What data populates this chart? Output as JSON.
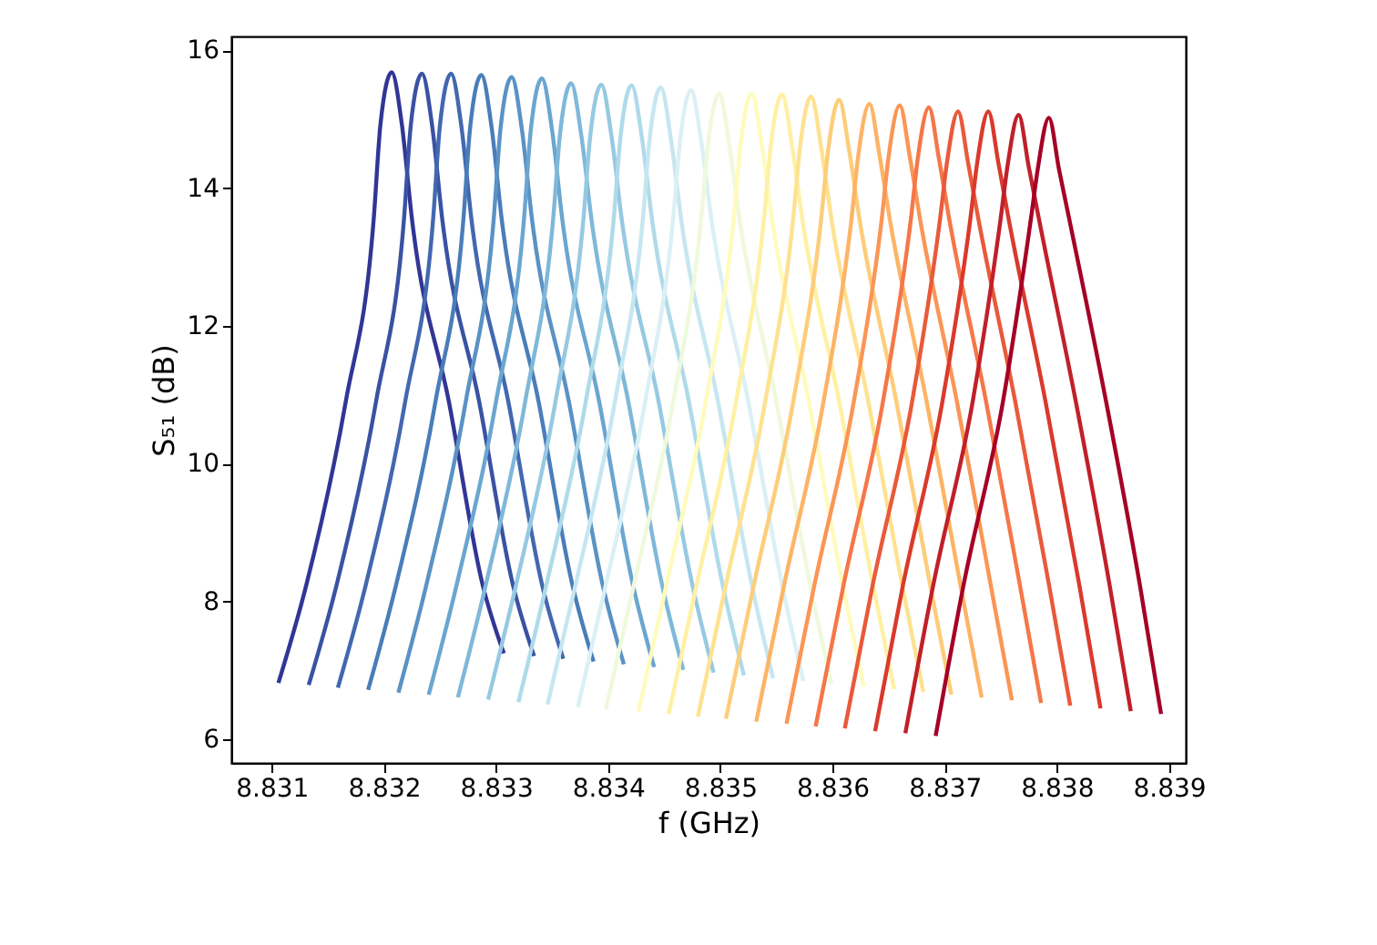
{
  "chart_data": {
    "type": "line",
    "xlabel": "f (GHz)",
    "ylabel": "S₅₁ (dB)",
    "xlim": [
      8.83064,
      8.83915
    ],
    "ylim": [
      5.66,
      16.2
    ],
    "xticks": [
      8.831,
      8.832,
      8.833,
      8.834,
      8.835,
      8.836,
      8.837,
      8.838,
      8.839
    ],
    "yticks": [
      6,
      8,
      10,
      12,
      14,
      16
    ],
    "grid": false,
    "legend": false,
    "line_style": "solid",
    "marker": "none",
    "series": [
      {
        "color": "#313695",
        "x": [
          8.83106,
          8.83131,
          8.83166,
          8.83191,
          8.83197,
          8.83207,
          8.83216,
          8.83225,
          8.83258,
          8.83288,
          8.83307
        ],
        "values": [
          6.82,
          8.25,
          10.9,
          13.56,
          14.93,
          15.68,
          14.93,
          13.56,
          10.9,
          8.25,
          7.25
        ]
      },
      {
        "color": "#3a52a3",
        "x": [
          8.83133,
          8.83158,
          8.83193,
          8.83218,
          8.83224,
          8.83234,
          8.83243,
          8.83252,
          8.83285,
          8.83315,
          8.83334
        ],
        "values": [
          6.79,
          8.25,
          10.9,
          13.56,
          14.91,
          15.66,
          14.91,
          13.56,
          10.9,
          8.25,
          7.21
        ]
      },
      {
        "color": "#4368af",
        "x": [
          8.83159,
          8.83184,
          8.83219,
          8.83244,
          8.8325,
          8.8326,
          8.83269,
          8.83278,
          8.83311,
          8.83341,
          8.8336
        ],
        "values": [
          6.75,
          8.25,
          10.9,
          13.56,
          14.91,
          15.66,
          14.91,
          13.56,
          10.9,
          8.25,
          7.17
        ]
      },
      {
        "color": "#4a7db9",
        "x": [
          8.83186,
          8.83211,
          8.83246,
          8.83271,
          8.83277,
          8.83287,
          8.83296,
          8.83305,
          8.83338,
          8.83368,
          8.83387
        ],
        "values": [
          6.72,
          8.25,
          10.9,
          13.56,
          14.89,
          15.64,
          14.89,
          13.56,
          10.9,
          8.25,
          7.13
        ]
      },
      {
        "color": "#5a92c4",
        "x": [
          8.83213,
          8.83238,
          8.83273,
          8.83298,
          8.83304,
          8.83314,
          8.83323,
          8.83332,
          8.83365,
          8.83395,
          8.83414
        ],
        "values": [
          6.68,
          8.25,
          10.9,
          13.56,
          14.86,
          15.61,
          14.86,
          13.56,
          10.9,
          8.25,
          7.09
        ]
      },
      {
        "color": "#6aa6cf",
        "x": [
          8.8324,
          8.83265,
          8.833,
          8.83325,
          8.83331,
          8.83341,
          8.8335,
          8.83359,
          8.83392,
          8.83422,
          8.83441
        ],
        "values": [
          6.65,
          8.25,
          10.9,
          13.56,
          14.84,
          15.59,
          14.84,
          13.56,
          10.9,
          8.25,
          7.05
        ]
      },
      {
        "color": "#7fb8d9",
        "x": [
          8.83266,
          8.83291,
          8.83326,
          8.83351,
          8.83357,
          8.83367,
          8.83376,
          8.83385,
          8.83418,
          8.83448,
          8.83467
        ],
        "values": [
          6.61,
          8.25,
          10.9,
          13.56,
          14.77,
          15.52,
          14.77,
          13.56,
          10.9,
          8.25,
          7.01
        ]
      },
      {
        "color": "#96c9e2",
        "x": [
          8.83293,
          8.83318,
          8.83353,
          8.83378,
          8.83384,
          8.83394,
          8.83403,
          8.83412,
          8.83445,
          8.83475,
          8.83494
        ],
        "values": [
          6.58,
          8.25,
          10.9,
          13.56,
          14.75,
          15.5,
          14.75,
          13.56,
          10.9,
          8.25,
          6.97
        ]
      },
      {
        "color": "#afdaea",
        "x": [
          8.8332,
          8.83345,
          8.8338,
          8.83405,
          8.83411,
          8.83421,
          8.8343,
          8.83439,
          8.83472,
          8.83502,
          8.83521
        ],
        "values": [
          6.54,
          8.25,
          10.9,
          13.56,
          14.74,
          15.49,
          14.74,
          13.56,
          10.9,
          8.25,
          6.93
        ]
      },
      {
        "color": "#c6e6f0",
        "x": [
          8.83346,
          8.83371,
          8.83406,
          8.83431,
          8.83437,
          8.83447,
          8.83456,
          8.83465,
          8.83498,
          8.83528,
          8.83547
        ],
        "values": [
          6.51,
          8.25,
          10.9,
          13.56,
          14.71,
          15.46,
          14.71,
          13.56,
          10.9,
          8.25,
          6.89
        ]
      },
      {
        "color": "#dbf0f5",
        "x": [
          8.83373,
          8.83398,
          8.83433,
          8.83458,
          8.83464,
          8.83474,
          8.83483,
          8.83492,
          8.83525,
          8.83555,
          8.83574
        ],
        "values": [
          6.47,
          8.25,
          10.9,
          13.56,
          14.67,
          15.42,
          14.67,
          13.56,
          10.9,
          8.25,
          6.85
        ]
      },
      {
        "color": "#eff9dc",
        "x": [
          8.83398,
          8.83423,
          8.83458,
          8.83483,
          8.83489,
          8.83499,
          8.83508,
          8.83517,
          8.8355,
          8.8358,
          8.83599
        ],
        "values": [
          6.44,
          8.25,
          10.9,
          13.56,
          14.62,
          15.37,
          14.62,
          13.56,
          10.9,
          8.25,
          6.81
        ]
      },
      {
        "color": "#fffbbd",
        "x": [
          8.83427,
          8.83452,
          8.83487,
          8.83512,
          8.83518,
          8.83528,
          8.83537,
          8.83546,
          8.83579,
          8.83609,
          8.83628
        ],
        "values": [
          6.4,
          8.25,
          10.9,
          13.56,
          14.62,
          15.37,
          14.62,
          13.56,
          10.9,
          8.25,
          6.77
        ]
      },
      {
        "color": "#fff0a4",
        "x": [
          8.83454,
          8.83479,
          8.83514,
          8.83539,
          8.83545,
          8.83555,
          8.83564,
          8.83573,
          8.83606,
          8.83636,
          8.83655
        ],
        "values": [
          6.37,
          8.25,
          10.9,
          13.56,
          14.61,
          15.36,
          14.61,
          13.56,
          10.9,
          8.25,
          6.73
        ]
      },
      {
        "color": "#fee290",
        "x": [
          8.8348,
          8.83505,
          8.8354,
          8.83565,
          8.83571,
          8.83581,
          8.8359,
          8.83599,
          8.83632,
          8.83662,
          8.83681
        ],
        "values": [
          6.33,
          8.25,
          10.9,
          13.56,
          14.58,
          15.33,
          14.58,
          13.56,
          10.9,
          8.25,
          6.69
        ]
      },
      {
        "color": "#fdcd7b",
        "x": [
          8.83505,
          8.8353,
          8.83565,
          8.8359,
          8.83596,
          8.83606,
          8.83615,
          8.83624,
          8.83657,
          8.83687,
          8.83706
        ],
        "values": [
          6.3,
          8.25,
          10.9,
          13.56,
          14.53,
          15.28,
          14.53,
          13.56,
          10.9,
          8.25,
          6.65
        ]
      },
      {
        "color": "#fdb466",
        "x": [
          8.83532,
          8.83557,
          8.83592,
          8.83617,
          8.83623,
          8.83633,
          8.83642,
          8.83651,
          8.83684,
          8.83714,
          8.83733
        ],
        "values": [
          6.26,
          8.25,
          10.9,
          13.56,
          14.47,
          15.22,
          14.47,
          13.56,
          10.9,
          8.25,
          6.61
        ]
      },
      {
        "color": "#fa9656",
        "x": [
          8.83559,
          8.83584,
          8.83619,
          8.83644,
          8.8365,
          8.8366,
          8.83669,
          8.83678,
          8.83711,
          8.83741,
          8.8376
        ],
        "values": [
          6.23,
          8.25,
          10.9,
          13.56,
          14.45,
          15.2,
          14.45,
          13.56,
          10.9,
          8.25,
          6.57
        ]
      },
      {
        "color": "#f57748",
        "x": [
          8.83585,
          8.8361,
          8.83645,
          8.8367,
          8.83676,
          8.83686,
          8.83695,
          8.83704,
          8.83737,
          8.83767,
          8.83786
        ],
        "values": [
          6.19,
          8.25,
          10.9,
          13.56,
          14.42,
          15.17,
          14.42,
          13.56,
          10.9,
          8.25,
          6.53
        ]
      },
      {
        "color": "#e85a3a",
        "x": [
          8.83611,
          8.83636,
          8.83671,
          8.83696,
          8.83702,
          8.83712,
          8.83721,
          8.8373,
          8.83763,
          8.83793,
          8.83812
        ],
        "values": [
          6.16,
          8.25,
          10.9,
          13.56,
          14.36,
          15.11,
          14.36,
          13.56,
          10.9,
          8.25,
          6.49
        ]
      },
      {
        "color": "#d93a2c",
        "x": [
          8.83638,
          8.83663,
          8.83698,
          8.83723,
          8.83729,
          8.83739,
          8.83748,
          8.83757,
          8.8379,
          8.8382,
          8.83839
        ],
        "values": [
          6.12,
          8.25,
          10.9,
          13.56,
          14.36,
          15.11,
          14.36,
          13.56,
          10.9,
          8.25,
          6.45
        ]
      },
      {
        "color": "#c0202a",
        "x": [
          8.83665,
          8.8369,
          8.83725,
          8.8375,
          8.83756,
          8.83766,
          8.83775,
          8.83784,
          8.83817,
          8.83847,
          8.83866
        ],
        "values": [
          6.09,
          8.25,
          10.9,
          13.56,
          14.31,
          15.06,
          14.31,
          13.56,
          10.9,
          8.25,
          6.41
        ]
      },
      {
        "color": "#a50026",
        "x": [
          8.83692,
          8.83717,
          8.83752,
          8.83777,
          8.83783,
          8.83793,
          8.83802,
          8.83811,
          8.83844,
          8.83874,
          8.83893
        ],
        "values": [
          6.05,
          8.25,
          10.9,
          13.56,
          14.27,
          15.02,
          14.27,
          13.56,
          10.9,
          8.25,
          6.37
        ]
      }
    ]
  }
}
